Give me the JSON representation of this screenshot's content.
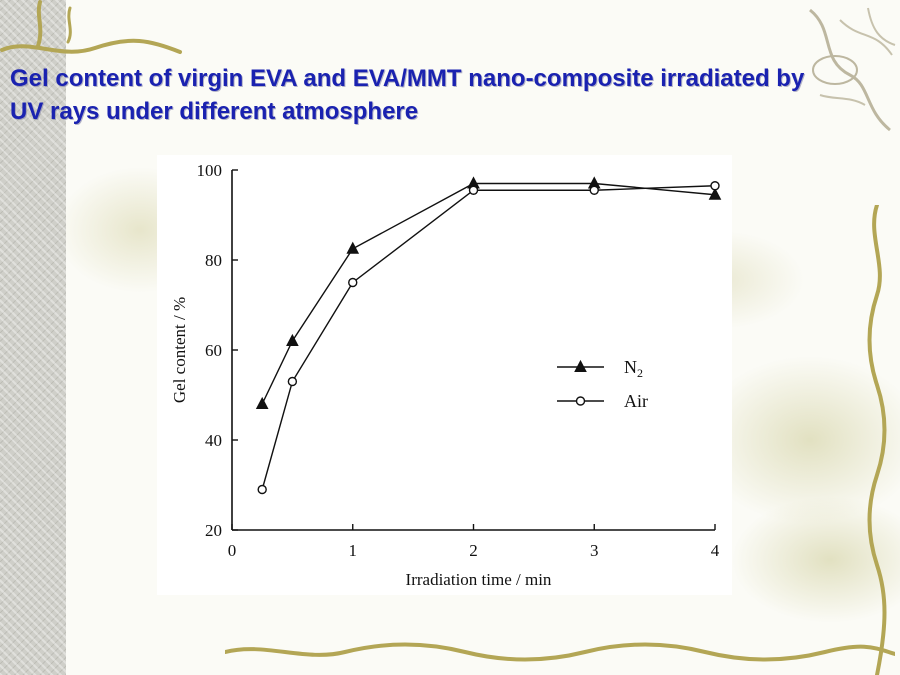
{
  "slide": {
    "title": "Gel content of virgin EVA and EVA/MMT nano-composite irradiated by UV rays under different atmosphere"
  },
  "colors": {
    "title": "#1a22b0",
    "vine": "#b3a655",
    "left_strip": "#cfcfc9"
  },
  "chart_data": {
    "type": "line",
    "title": "",
    "xlabel": "Irradiation time / min",
    "ylabel": "Gel content / %",
    "xlim": [
      0,
      4
    ],
    "ylim": [
      20,
      100
    ],
    "xticks": [
      0,
      1,
      2,
      3,
      4
    ],
    "yticks": [
      20,
      40,
      60,
      80,
      100
    ],
    "grid": false,
    "legend_position": "center-right",
    "series": [
      {
        "name": "N",
        "name_subscript": "2",
        "marker": "filled-triangle",
        "x": [
          0.25,
          0.5,
          1,
          2,
          3,
          4
        ],
        "y": [
          48,
          62,
          82.5,
          97,
          97,
          94.5
        ]
      },
      {
        "name": "Air",
        "marker": "open-circle",
        "x": [
          0.25,
          0.5,
          1,
          2,
          3,
          4
        ],
        "y": [
          29,
          53,
          75,
          95.5,
          95.5,
          96.5
        ]
      }
    ]
  }
}
